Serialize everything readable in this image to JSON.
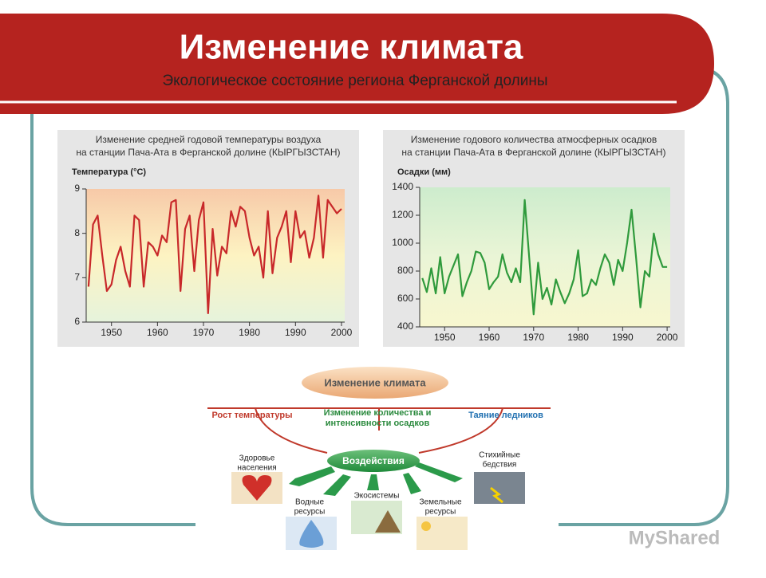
{
  "header": {
    "title": "Изменение климата",
    "subtitle": "Экологическое состояние региона Ферганской долины"
  },
  "chart_data": [
    {
      "type": "line",
      "title": [
        "Изменение средней годовой температуры воздуха",
        "на станции Пача-Ата в Ферганской долине (КЫРГЫЗСТАН)"
      ],
      "y_label": "Температура (°С)",
      "x": [
        1945,
        1946,
        1947,
        1948,
        1949,
        1950,
        1951,
        1952,
        1953,
        1954,
        1955,
        1956,
        1957,
        1958,
        1959,
        1960,
        1961,
        1962,
        1963,
        1964,
        1965,
        1966,
        1967,
        1968,
        1969,
        1970,
        1971,
        1972,
        1973,
        1974,
        1975,
        1976,
        1977,
        1978,
        1979,
        1980,
        1981,
        1982,
        1983,
        1984,
        1985,
        1986,
        1987,
        1988,
        1989,
        1990,
        1991,
        1992,
        1993,
        1994,
        1995,
        1996,
        1997,
        1998,
        1999,
        2000
      ],
      "series": [
        {
          "color": "#c8282a",
          "values": [
            6.8,
            8.2,
            8.4,
            7.5,
            6.7,
            6.85,
            7.4,
            7.7,
            7.15,
            6.8,
            8.4,
            8.3,
            6.8,
            7.8,
            7.7,
            7.5,
            7.95,
            7.8,
            8.7,
            8.75,
            6.7,
            8.1,
            8.4,
            7.15,
            8.3,
            8.7,
            6.2,
            8.1,
            7.05,
            7.7,
            7.55,
            8.5,
            8.15,
            8.6,
            8.5,
            7.9,
            7.5,
            7.7,
            7.0,
            8.5,
            7.1,
            7.9,
            8.15,
            8.5,
            7.35,
            8.5,
            7.9,
            8.05,
            7.45,
            7.9,
            8.85,
            7.45,
            8.75,
            8.6,
            8.45,
            8.55
          ]
        }
      ],
      "xlim": [
        1944.5,
        2000.7
      ],
      "ylim": [
        6,
        9
      ],
      "xticks": [
        1950,
        1960,
        1970,
        1980,
        1990,
        2000
      ],
      "yticks": [
        6,
        7,
        8,
        9
      ],
      "background": [
        "#f7c9a8",
        "#fdf3c2",
        "#e6f3dc"
      ]
    },
    {
      "type": "line",
      "title": [
        "Изменение годового количества атмосферных осадков",
        "на станции Пача-Ата в Ферганской долине (КЫРГЫЗСТАН)"
      ],
      "y_label": "Осадки (мм)",
      "x": [
        1945,
        1946,
        1947,
        1948,
        1949,
        1950,
        1951,
        1952,
        1953,
        1954,
        1955,
        1956,
        1957,
        1958,
        1959,
        1960,
        1961,
        1962,
        1963,
        1964,
        1965,
        1966,
        1967,
        1968,
        1969,
        1970,
        1971,
        1972,
        1973,
        1974,
        1975,
        1976,
        1977,
        1978,
        1979,
        1980,
        1981,
        1982,
        1983,
        1984,
        1985,
        1986,
        1987,
        1988,
        1989,
        1990,
        1991,
        1992,
        1993,
        1994,
        1995,
        1996,
        1997,
        1998,
        1999,
        2000
      ],
      "series": [
        {
          "color": "#2f9a3c",
          "values": [
            750,
            650,
            820,
            640,
            900,
            640,
            760,
            840,
            920,
            620,
            720,
            800,
            940,
            930,
            860,
            670,
            720,
            760,
            920,
            790,
            720,
            820,
            720,
            1310,
            900,
            490,
            860,
            600,
            680,
            560,
            740,
            650,
            570,
            640,
            740,
            950,
            620,
            640,
            740,
            700,
            820,
            920,
            860,
            700,
            880,
            800,
            1000,
            1240,
            900,
            540,
            800,
            760,
            1070,
            920,
            830,
            830
          ]
        }
      ],
      "xlim": [
        1944.4,
        2000.7
      ],
      "ylim": [
        400,
        1400
      ],
      "xticks": [
        1950,
        1960,
        1970,
        1980,
        1990,
        2000
      ],
      "yticks": [
        400,
        600,
        800,
        1000,
        1200,
        1400
      ],
      "background": [
        "#cdeccd",
        "#eaf5d6",
        "#f8f7cf"
      ]
    }
  ],
  "diagram": {
    "root": "Изменение климата",
    "causes": [
      [
        "Рост температуры"
      ],
      [
        "Изменение количества и",
        "интенсивности осадков"
      ],
      [
        "Таяние ледников"
      ]
    ],
    "hub": "Воздействия",
    "effects": [
      [
        "Здоровье",
        "населения"
      ],
      [
        "Водные",
        "ресурсы"
      ],
      [
        "Экосистемы"
      ],
      [
        "Земельные",
        "ресурсы"
      ],
      [
        "Стихийные",
        "бедствия"
      ]
    ]
  },
  "watermark": "MyShared"
}
